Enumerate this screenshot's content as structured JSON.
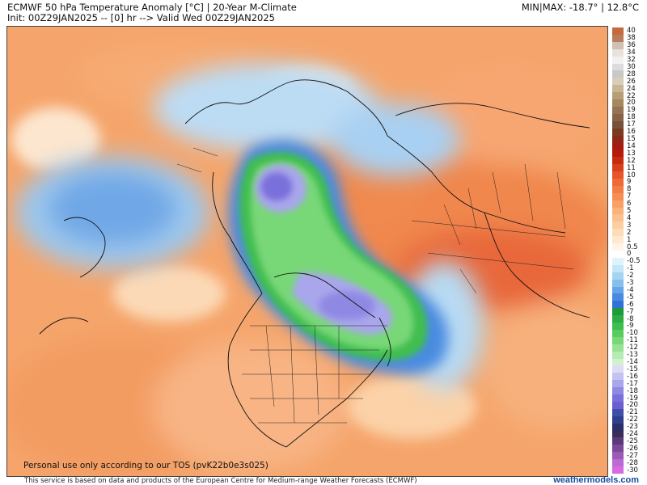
{
  "header": {
    "title_line1": "ECMWF 50 hPa Temperature Anomaly [°C] | 20-Year M-Climate",
    "title_line2": "Init: 00Z29JAN2025 -- [0] hr --> Valid Wed 00Z29JAN2025",
    "minmax": "MIN|MAX: -18.7° | 12.8°C"
  },
  "map": {
    "tos_notice": "Personal use only according to our TOS (pvK22b0e3s025)"
  },
  "footer": {
    "credit": "This service is based on data and products of the European Centre for Medium-range Weather Forecasts (ECMWF)",
    "site": "weathermodels.com"
  },
  "colorbar": {
    "levels": [
      {
        "label": "40",
        "color": "#c46a3c"
      },
      {
        "label": "38",
        "color": "#b87d5c"
      },
      {
        "label": "36",
        "color": "#cfc0b2"
      },
      {
        "label": "34",
        "color": "#e7e2de"
      },
      {
        "label": "32",
        "color": "#f1f1f1"
      },
      {
        "label": "30",
        "color": "#dcdcdc"
      },
      {
        "label": "28",
        "color": "#c8c8c8"
      },
      {
        "label": "26",
        "color": "#d9cdb8"
      },
      {
        "label": "24",
        "color": "#c7b594"
      },
      {
        "label": "22",
        "color": "#b59e78"
      },
      {
        "label": "20",
        "color": "#a68760"
      },
      {
        "label": "19",
        "color": "#977355"
      },
      {
        "label": "18",
        "color": "#876247"
      },
      {
        "label": "17",
        "color": "#76523b"
      },
      {
        "label": "16",
        "color": "#7a3a22"
      },
      {
        "label": "15",
        "color": "#8c2a18"
      },
      {
        "label": "14",
        "color": "#a31d10"
      },
      {
        "label": "13",
        "color": "#b61a0c"
      },
      {
        "label": "12",
        "color": "#c82a10"
      },
      {
        "label": "11",
        "color": "#d8401c"
      },
      {
        "label": "10",
        "color": "#e45529"
      },
      {
        "label": "9",
        "color": "#ee6a36"
      },
      {
        "label": "8",
        "color": "#f37e45"
      },
      {
        "label": "7",
        "color": "#f68f55"
      },
      {
        "label": "6",
        "color": "#f8a066"
      },
      {
        "label": "5",
        "color": "#fab27a"
      },
      {
        "label": "4",
        "color": "#fbc08e"
      },
      {
        "label": "3",
        "color": "#fccfa2"
      },
      {
        "label": "2",
        "color": "#fddcb8"
      },
      {
        "label": "1",
        "color": "#fee8cf"
      },
      {
        "label": "0.5",
        "color": "#fff4e6"
      },
      {
        "label": "0",
        "color": "#ffffff"
      },
      {
        "label": "-0.5",
        "color": "#dff3fb"
      },
      {
        "label": "-1",
        "color": "#c3e6f8"
      },
      {
        "label": "-2",
        "color": "#a5d4f3"
      },
      {
        "label": "-3",
        "color": "#86bfee"
      },
      {
        "label": "-4",
        "color": "#66a6e7"
      },
      {
        "label": "-5",
        "color": "#4a8be0"
      },
      {
        "label": "-6",
        "color": "#3272d6"
      },
      {
        "label": "-7",
        "color": "#1e9a3a"
      },
      {
        "label": "-8",
        "color": "#2dac44"
      },
      {
        "label": "-9",
        "color": "#3fbe50"
      },
      {
        "label": "-10",
        "color": "#58cc60"
      },
      {
        "label": "-11",
        "color": "#78d878"
      },
      {
        "label": "-12",
        "color": "#97e294"
      },
      {
        "label": "-13",
        "color": "#b6ebb2"
      },
      {
        "label": "-14",
        "color": "#d2f2cf"
      },
      {
        "label": "-15",
        "color": "#dcdcf6"
      },
      {
        "label": "-16",
        "color": "#c3c3f2"
      },
      {
        "label": "-17",
        "color": "#a9a6ec"
      },
      {
        "label": "-18",
        "color": "#8f89e4"
      },
      {
        "label": "-19",
        "color": "#7a70dc"
      },
      {
        "label": "-20",
        "color": "#6a5ed0"
      },
      {
        "label": "-21",
        "color": "#3e4fa8"
      },
      {
        "label": "-22",
        "color": "#2f3f8e"
      },
      {
        "label": "-23",
        "color": "#2a2f6a"
      },
      {
        "label": "-24",
        "color": "#3a2d58"
      },
      {
        "label": "-25",
        "color": "#5a3a78"
      },
      {
        "label": "-26",
        "color": "#7a4a98"
      },
      {
        "label": "-27",
        "color": "#9a5ab8"
      },
      {
        "label": "-28",
        "color": "#ba6ad2"
      },
      {
        "label": "-30",
        "color": "#d86ae0"
      }
    ]
  }
}
